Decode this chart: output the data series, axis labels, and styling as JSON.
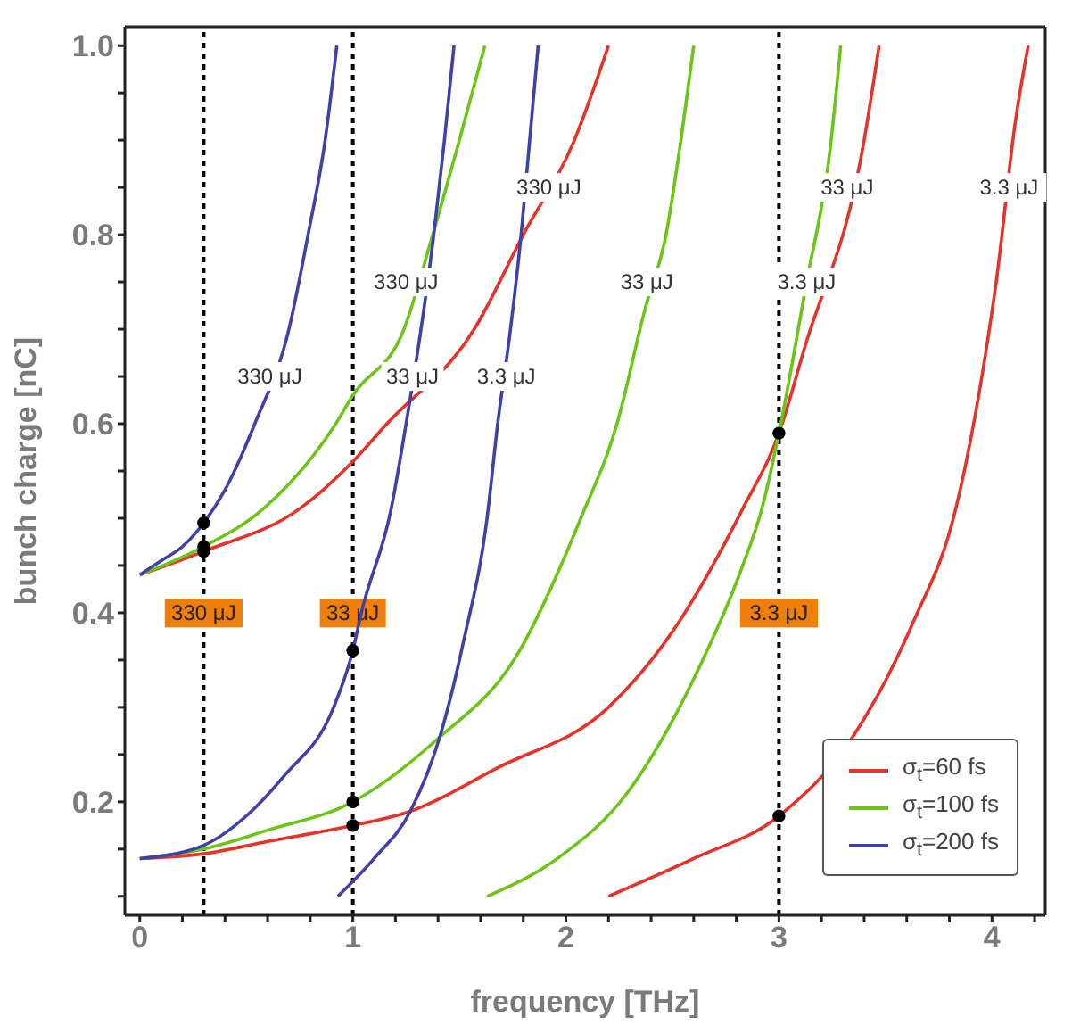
{
  "chart_data": {
    "type": "line",
    "xlabel": "frequency [THz]",
    "ylabel": "bunch charge [nC]",
    "xlim": [
      -0.07,
      4.25
    ],
    "ylim": [
      0.08,
      1.02
    ],
    "xticks": [
      0,
      {
        "value": 0.2,
        "label": null
      },
      {
        "value": 0.4,
        "label": null
      },
      {
        "value": 0.6,
        "label": null
      },
      {
        "value": 0.8,
        "label": null
      },
      1,
      {
        "value": 1.2,
        "label": null
      },
      {
        "value": 1.4,
        "label": null
      },
      {
        "value": 1.6,
        "label": null
      },
      {
        "value": 1.8,
        "label": null
      },
      2,
      {
        "value": 2.2,
        "label": null
      },
      {
        "value": 2.4,
        "label": null
      },
      {
        "value": 2.6,
        "label": null
      },
      {
        "value": 2.8,
        "label": null
      },
      3,
      {
        "value": 3.2,
        "label": null
      },
      {
        "value": 3.4,
        "label": null
      },
      {
        "value": 3.6,
        "label": null
      },
      {
        "value": 3.8,
        "label": null
      },
      4,
      {
        "value": 4.2,
        "label": null
      }
    ],
    "yticks": [
      {
        "value": 0.1,
        "label": null
      },
      {
        "value": 0.15,
        "label": null
      },
      0.2,
      {
        "value": 0.25,
        "label": null
      },
      {
        "value": 0.3,
        "label": null
      },
      {
        "value": 0.35,
        "label": null
      },
      0.4,
      {
        "value": 0.45,
        "label": null
      },
      {
        "value": 0.5,
        "label": null
      },
      {
        "value": 0.55,
        "label": null
      },
      0.6,
      {
        "value": 0.65,
        "label": null
      },
      {
        "value": 0.7,
        "label": null
      },
      {
        "value": 0.75,
        "label": null
      },
      0.8,
      {
        "value": 0.85,
        "label": null
      },
      {
        "value": 0.9,
        "label": null
      },
      {
        "value": 0.95,
        "label": null
      },
      {
        "value": 1,
        "label": "1.0"
      }
    ],
    "grid": false,
    "legend": "bottom right",
    "line_style": "solid",
    "series": [
      {
        "name": "σ$_{t}$=60 fs",
        "color": "#e5332a",
        "x": [
          0,
          0.3,
          0.75,
          1.0,
          1.16,
          1.57,
          1.8,
          2.04,
          2.2
        ],
        "values": [
          0.44,
          0.465,
          0.51,
          0.56,
          0.6,
          0.7,
          0.8,
          0.9,
          1.0
        ]
      },
      {
        "name": "σ$_{t}$=100 fs",
        "color": "#6cc417",
        "x": [
          0,
          0.3,
          0.58,
          0.92,
          1.0,
          1.24,
          1.375,
          1.5,
          1.62
        ],
        "values": [
          0.44,
          0.47,
          0.51,
          0.6,
          0.63,
          0.7,
          0.8,
          0.9,
          1.0
        ]
      },
      {
        "name": "σ$_{t}$=200 fs",
        "color": "#3f40a8",
        "x": [
          0,
          0.1,
          0.2,
          0.3,
          0.4,
          0.54,
          0.7,
          0.79,
          0.87,
          0.925
        ],
        "values": [
          0.44,
          0.455,
          0.47,
          0.495,
          0.53,
          0.6,
          0.7,
          0.8,
          0.9,
          1.0
        ]
      },
      {
        "color": "#e5332a",
        "x": [
          0,
          0.3,
          0.6,
          1.0,
          1.27,
          1.68,
          2.2,
          2.5,
          2.83,
          3.0,
          3.12,
          3.4,
          3.47
        ],
        "values": [
          0.14,
          0.145,
          0.158,
          0.175,
          0.19,
          0.236,
          0.3,
          0.38,
          0.51,
          0.59,
          0.68,
          0.9,
          1.0
        ]
      },
      {
        "color": "#6cc417",
        "x": [
          0,
          0.3,
          0.6,
          1.0,
          1.39,
          1.77,
          2.07,
          2.24,
          2.37,
          2.47,
          2.54,
          2.6
        ],
        "values": [
          0.14,
          0.15,
          0.17,
          0.2,
          0.265,
          0.355,
          0.5,
          0.6,
          0.72,
          0.8,
          0.9,
          1.0
        ]
      },
      {
        "color": "#3f40a8",
        "x": [
          0,
          0.29,
          0.5,
          0.68,
          0.91,
          1.0,
          1.04,
          1.18,
          1.25,
          1.32,
          1.38,
          1.43,
          1.475
        ],
        "values": [
          0.14,
          0.153,
          0.185,
          0.228,
          0.3,
          0.36,
          0.4,
          0.51,
          0.6,
          0.7,
          0.8,
          0.9,
          1.0
        ]
      },
      {
        "color": "#e5332a",
        "x": [
          2.2,
          2.6,
          3.0,
          3.35,
          3.63,
          3.83,
          3.96,
          4.02,
          4.11,
          4.17
        ],
        "values": [
          0.1,
          0.14,
          0.185,
          0.27,
          0.39,
          0.51,
          0.66,
          0.75,
          0.92,
          1.0
        ]
      },
      {
        "color": "#6cc417",
        "x": [
          1.63,
          1.96,
          2.29,
          2.6,
          2.83,
          2.92,
          3.0,
          3.13,
          3.24,
          3.29
        ],
        "values": [
          0.1,
          0.14,
          0.21,
          0.33,
          0.45,
          0.51,
          0.59,
          0.75,
          0.89,
          1.0
        ]
      },
      {
        "color": "#3f40a8",
        "x": [
          0.93,
          1.1,
          1.27,
          1.41,
          1.52,
          1.63,
          1.68,
          1.74,
          1.79,
          1.83,
          1.87
        ],
        "values": [
          0.1,
          0.14,
          0.19,
          0.27,
          0.37,
          0.5,
          0.6,
          0.7,
          0.8,
          0.9,
          1.0
        ]
      },
      {
        "type": "scatter",
        "color": "#000000",
        "x": [
          0.3,
          0.3,
          0.3,
          1,
          1,
          1,
          3,
          3
        ],
        "values": [
          0.495,
          0.47,
          0.465,
          0.36,
          0.2,
          0.175,
          0.59,
          0.185
        ]
      }
    ],
    "ref_lines": [
      {
        "axis": "x",
        "value": 0.3,
        "label": "330 μJ",
        "color": "#000000",
        "line_style": "dotted"
      },
      {
        "axis": "x",
        "value": 1,
        "label": "33 μJ",
        "color": "#000000",
        "line_style": "dotted"
      },
      {
        "axis": "x",
        "value": 3,
        "label": "3.3 μJ",
        "color": "#000000",
        "line_style": "dotted"
      }
    ],
    "annotations": [
      {
        "text": "330 μJ",
        "x": 0.61,
        "y": 0.65
      },
      {
        "text": "330 μJ",
        "x": 1.25,
        "y": 0.75
      },
      {
        "text": "330 μJ",
        "x": 1.92,
        "y": 0.85
      },
      {
        "text": "33 μJ",
        "x": 1.28,
        "y": 0.65
      },
      {
        "text": "33 μJ",
        "x": 2.38,
        "y": 0.75
      },
      {
        "text": "33 μJ",
        "x": 3.32,
        "y": 0.85
      },
      {
        "text": "3.3 μJ",
        "x": 1.72,
        "y": 0.65
      },
      {
        "text": "3.3 μJ",
        "x": 3.13,
        "y": 0.75
      },
      {
        "text": "3.3 μJ",
        "x": 4.08,
        "y": 0.85
      }
    ]
  }
}
